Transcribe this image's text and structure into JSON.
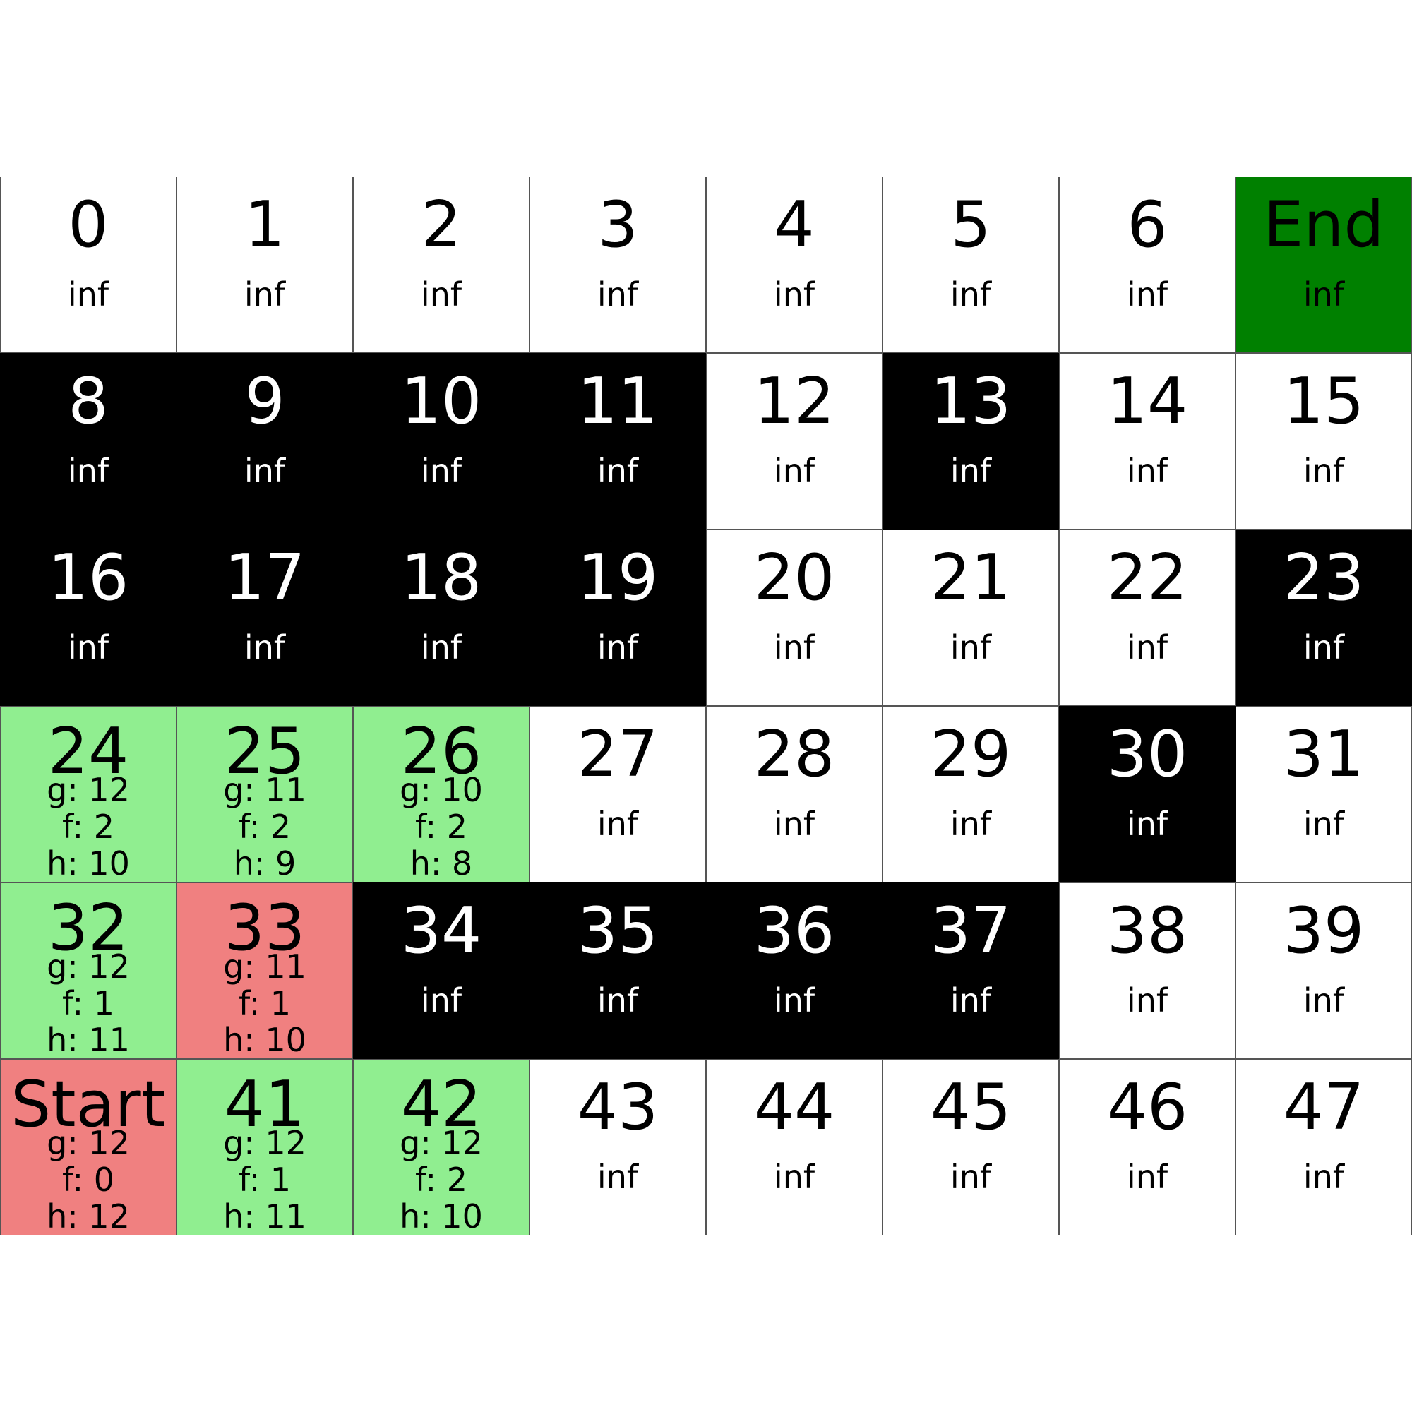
{
  "legend_colors": {
    "empty": "#ffffff",
    "wall": "#000000",
    "end": "#008000",
    "open": "#90ee90",
    "closed": "#f08080",
    "start": "#f08080"
  },
  "grid": {
    "columns": 8,
    "rows": 6,
    "cells": [
      {
        "label": "0",
        "state": "empty",
        "cost": "inf"
      },
      {
        "label": "1",
        "state": "empty",
        "cost": "inf"
      },
      {
        "label": "2",
        "state": "empty",
        "cost": "inf"
      },
      {
        "label": "3",
        "state": "empty",
        "cost": "inf"
      },
      {
        "label": "4",
        "state": "empty",
        "cost": "inf"
      },
      {
        "label": "5",
        "state": "empty",
        "cost": "inf"
      },
      {
        "label": "6",
        "state": "empty",
        "cost": "inf"
      },
      {
        "label": "End",
        "state": "end",
        "cost": "inf"
      },
      {
        "label": "8",
        "state": "wall",
        "cost": "inf"
      },
      {
        "label": "9",
        "state": "wall",
        "cost": "inf"
      },
      {
        "label": "10",
        "state": "wall",
        "cost": "inf"
      },
      {
        "label": "11",
        "state": "wall",
        "cost": "inf"
      },
      {
        "label": "12",
        "state": "empty",
        "cost": "inf"
      },
      {
        "label": "13",
        "state": "wall",
        "cost": "inf"
      },
      {
        "label": "14",
        "state": "empty",
        "cost": "inf"
      },
      {
        "label": "15",
        "state": "empty",
        "cost": "inf"
      },
      {
        "label": "16",
        "state": "wall",
        "cost": "inf"
      },
      {
        "label": "17",
        "state": "wall",
        "cost": "inf"
      },
      {
        "label": "18",
        "state": "wall",
        "cost": "inf"
      },
      {
        "label": "19",
        "state": "wall",
        "cost": "inf"
      },
      {
        "label": "20",
        "state": "empty",
        "cost": "inf"
      },
      {
        "label": "21",
        "state": "empty",
        "cost": "inf"
      },
      {
        "label": "22",
        "state": "empty",
        "cost": "inf"
      },
      {
        "label": "23",
        "state": "wall",
        "cost": "inf"
      },
      {
        "label": "24",
        "state": "open",
        "scores": [
          "g: 12",
          "f: 2",
          "h: 10"
        ]
      },
      {
        "label": "25",
        "state": "open",
        "scores": [
          "g: 11",
          "f: 2",
          "h: 9"
        ]
      },
      {
        "label": "26",
        "state": "open",
        "scores": [
          "g: 10",
          "f: 2",
          "h: 8"
        ]
      },
      {
        "label": "27",
        "state": "empty",
        "cost": "inf"
      },
      {
        "label": "28",
        "state": "empty",
        "cost": "inf"
      },
      {
        "label": "29",
        "state": "empty",
        "cost": "inf"
      },
      {
        "label": "30",
        "state": "wall",
        "cost": "inf"
      },
      {
        "label": "31",
        "state": "empty",
        "cost": "inf"
      },
      {
        "label": "32",
        "state": "open",
        "scores": [
          "g: 12",
          "f: 1",
          "h: 11"
        ]
      },
      {
        "label": "33",
        "state": "closed",
        "scores": [
          "g: 11",
          "f: 1",
          "h: 10"
        ]
      },
      {
        "label": "34",
        "state": "wall",
        "cost": "inf"
      },
      {
        "label": "35",
        "state": "wall",
        "cost": "inf"
      },
      {
        "label": "36",
        "state": "wall",
        "cost": "inf"
      },
      {
        "label": "37",
        "state": "wall",
        "cost": "inf"
      },
      {
        "label": "38",
        "state": "empty",
        "cost": "inf"
      },
      {
        "label": "39",
        "state": "empty",
        "cost": "inf"
      },
      {
        "label": "Start",
        "state": "start",
        "scores": [
          "g: 12",
          "f: 0",
          "h: 12"
        ]
      },
      {
        "label": "41",
        "state": "open",
        "scores": [
          "g: 12",
          "f: 1",
          "h: 11"
        ]
      },
      {
        "label": "42",
        "state": "open",
        "scores": [
          "g: 12",
          "f: 2",
          "h: 10"
        ]
      },
      {
        "label": "43",
        "state": "empty",
        "cost": "inf"
      },
      {
        "label": "44",
        "state": "empty",
        "cost": "inf"
      },
      {
        "label": "45",
        "state": "empty",
        "cost": "inf"
      },
      {
        "label": "46",
        "state": "empty",
        "cost": "inf"
      },
      {
        "label": "47",
        "state": "empty",
        "cost": "inf"
      }
    ]
  }
}
